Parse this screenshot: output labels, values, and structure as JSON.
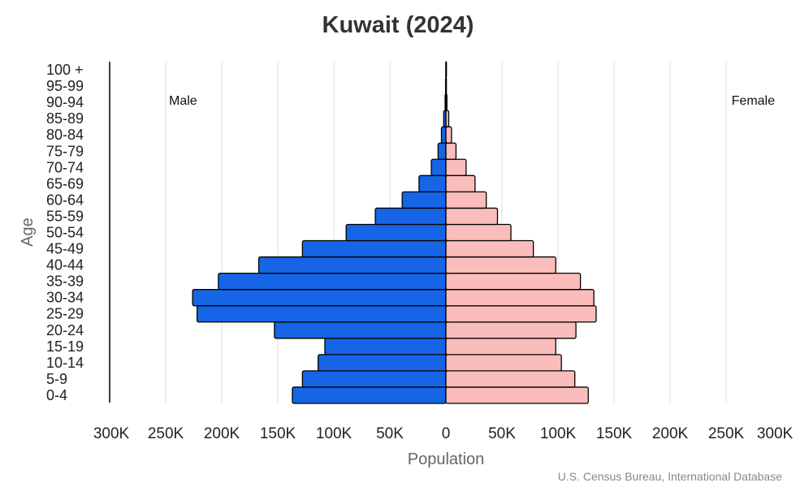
{
  "chart_data": {
    "type": "bar",
    "orientation": "horizontal-population-pyramid",
    "title": "Kuwait (2024)",
    "xlabel": "Population",
    "ylabel": "Age",
    "source": "U.S. Census Bureau, International Database",
    "categories": [
      "0-4",
      "5-9",
      "10-14",
      "15-19",
      "20-24",
      "25-29",
      "30-34",
      "35-39",
      "40-44",
      "45-49",
      "50-54",
      "55-59",
      "60-64",
      "65-69",
      "70-74",
      "75-79",
      "80-84",
      "85-89",
      "90-94",
      "95-99",
      "100 +"
    ],
    "series": [
      {
        "name": "Male",
        "color": "#1565e6",
        "values": [
          137000,
          128000,
          114000,
          108000,
          153000,
          222000,
          226000,
          203000,
          167000,
          128000,
          89000,
          63000,
          39000,
          24000,
          13000,
          7000,
          4000,
          2000,
          700,
          300,
          100
        ]
      },
      {
        "name": "Female",
        "color": "#fbbcbc",
        "values": [
          127000,
          115000,
          103000,
          98000,
          116000,
          134000,
          132000,
          120000,
          98000,
          78000,
          58000,
          46000,
          36000,
          26000,
          18000,
          9000,
          5000,
          2500,
          900,
          400,
          200
        ]
      }
    ],
    "xlim": [
      -300000,
      300000
    ],
    "xticks": [
      -300000,
      -250000,
      -200000,
      -150000,
      -100000,
      -50000,
      0,
      50000,
      100000,
      150000,
      200000,
      250000,
      300000
    ],
    "xtick_labels": [
      "300K",
      "250K",
      "200K",
      "150K",
      "100K",
      "50K",
      "0",
      "50K",
      "100K",
      "150K",
      "200K",
      "250K",
      "300K"
    ],
    "side_labels": {
      "left": "Male",
      "right": "Female"
    },
    "grid": true,
    "legend": "none"
  }
}
